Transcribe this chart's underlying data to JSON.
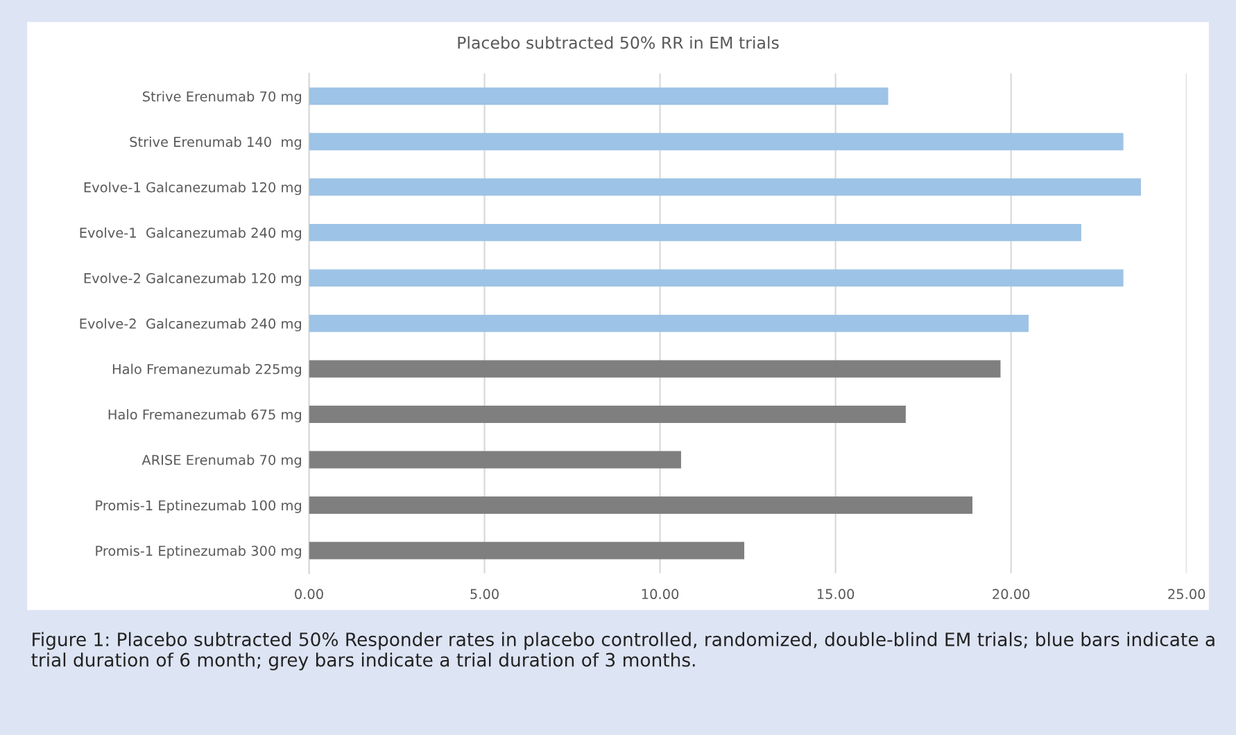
{
  "chart_data": {
    "type": "bar",
    "orientation": "horizontal",
    "title": "Placebo subtracted 50% RR in EM trials",
    "categories": [
      "Strive Erenumab 70 mg",
      "Strive Erenumab 140  mg",
      "Evolve-1 Galcanezumab 120 mg",
      "Evolve-1  Galcanezumab 240 mg",
      "Evolve-2 Galcanezumab 120 mg",
      "Evolve-2  Galcanezumab 240 mg",
      "Halo Fremanezumab 225mg",
      "Halo Fremanezumab 675 mg",
      "ARISE Erenumab 70 mg",
      "Promis-1 Eptinezumab 100 mg",
      "Promis-1 Eptinezumab 300 mg"
    ],
    "values": [
      16.5,
      23.2,
      23.7,
      22.0,
      23.2,
      20.5,
      19.7,
      17.0,
      10.6,
      18.9,
      12.4
    ],
    "colors": [
      "#9dc3e6",
      "#9dc3e6",
      "#9dc3e6",
      "#9dc3e6",
      "#9dc3e6",
      "#9dc3e6",
      "#7f7f7f",
      "#7f7f7f",
      "#7f7f7f",
      "#7f7f7f",
      "#7f7f7f"
    ],
    "xlim": [
      0,
      25
    ],
    "xticks": [
      {
        "value": 0,
        "label": "0.00"
      },
      {
        "value": 5,
        "label": "5.00"
      },
      {
        "value": 10,
        "label": "10.00"
      },
      {
        "value": 15,
        "label": "15.00"
      },
      {
        "value": 20,
        "label": "20.00"
      },
      {
        "value": 25,
        "label": "25.00"
      }
    ],
    "grid": "x",
    "legend": false,
    "annotations": [
      "Figure 1: Placebo subtracted 50% Responder rates in placebo controlled, randomized, double-blind EM trials; blue bars indicate a trial duration of 6 month; grey bars indicate a trial duration of 3 months."
    ]
  }
}
